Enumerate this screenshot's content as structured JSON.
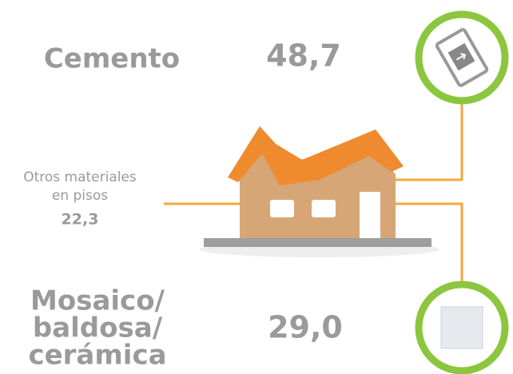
{
  "items": [
    {
      "label": "Cemento",
      "value": "48,7"
    },
    {
      "label_lines": [
        "Otros materiales",
        "en pisos"
      ],
      "value": "22,3"
    },
    {
      "label_lines": [
        "Mosaico/",
        "baldosa/",
        "cerámica"
      ],
      "value": "29,0"
    }
  ]
}
